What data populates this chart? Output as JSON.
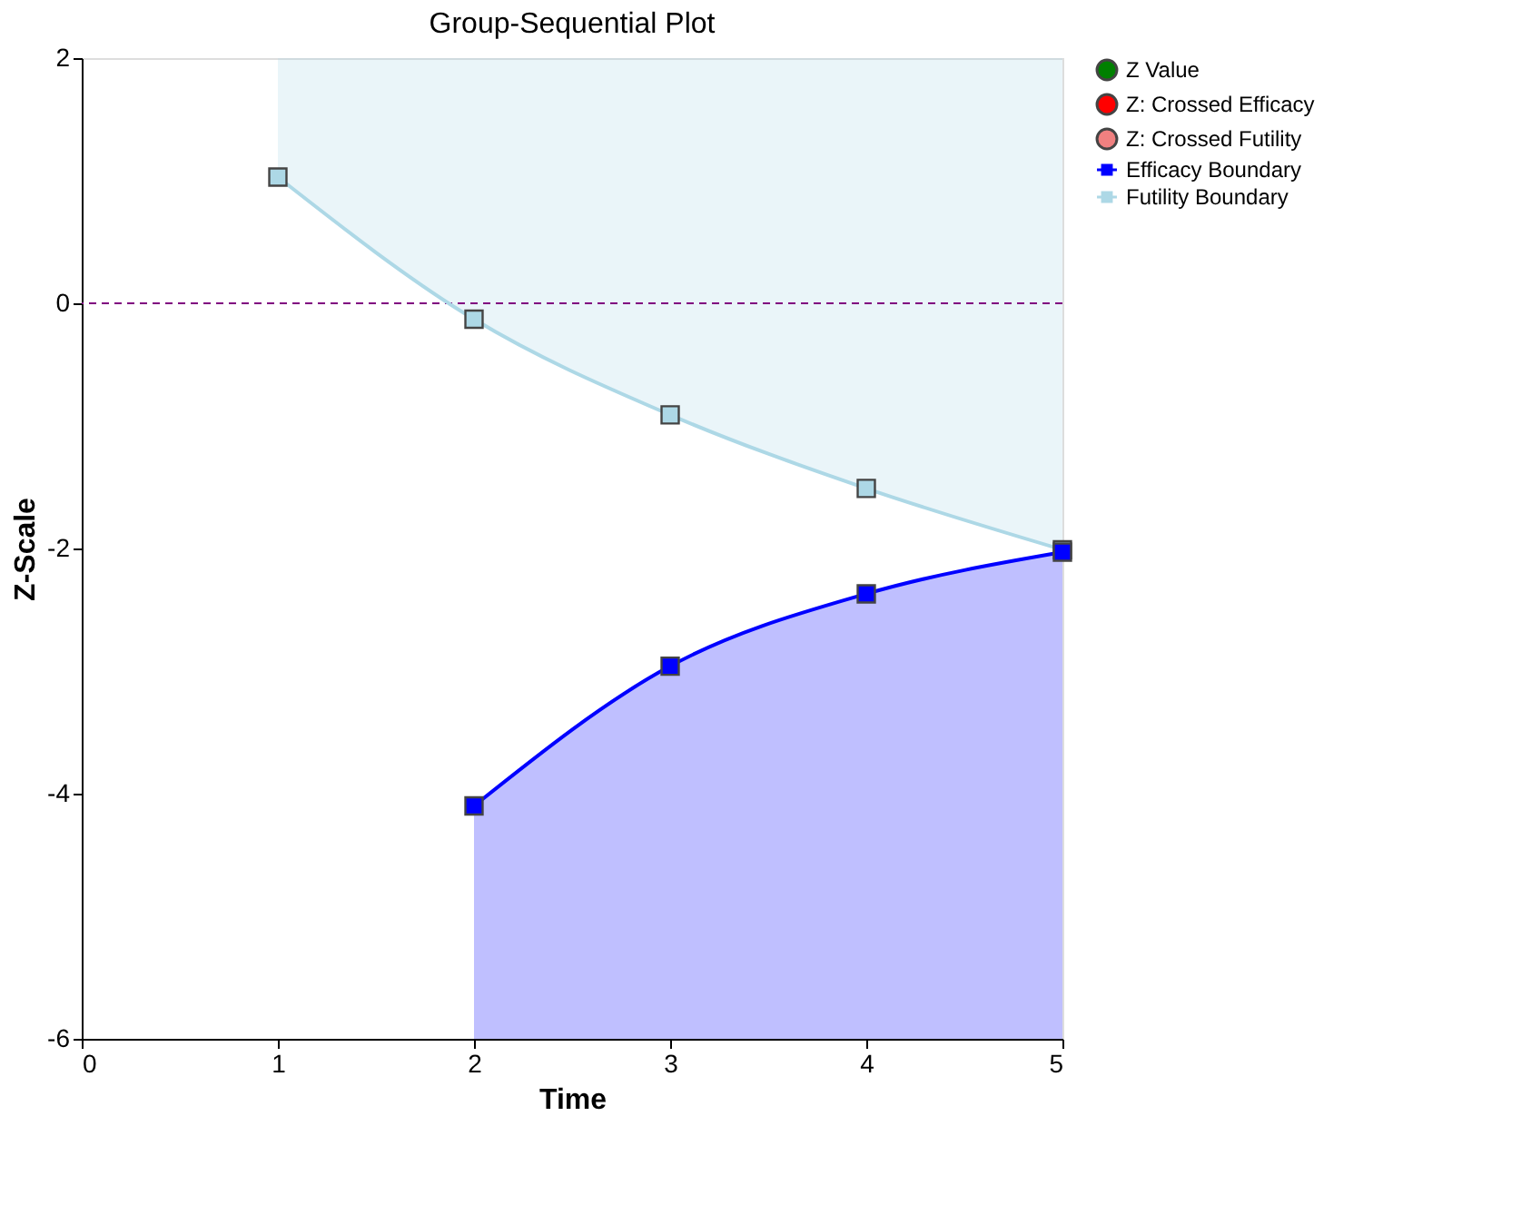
{
  "chart_data": {
    "type": "line",
    "title": "Group-Sequential Plot",
    "xlabel": "Time",
    "ylabel": "Z-Scale",
    "xlim": [
      0,
      5
    ],
    "xticks": [
      0,
      1,
      2,
      3,
      4,
      5
    ],
    "ylim": [
      -6,
      2
    ],
    "yticks": [
      -6,
      -4,
      -2,
      0,
      2
    ],
    "grid": false,
    "legend": "right",
    "series": [
      {
        "name": "Z Value",
        "type": "scatter",
        "marker": "circle",
        "color": "#008000"
      },
      {
        "name": "Z: Crossed Efficacy",
        "type": "scatter",
        "marker": "circle",
        "color": "#ff0000"
      },
      {
        "name": "Z: Crossed Futility",
        "type": "scatter",
        "marker": "circle",
        "color": "#f08080"
      },
      {
        "name": "Efficacy Boundary",
        "marker": "square",
        "line_style": "solid",
        "color": "#0000ff",
        "x": [
          2,
          3,
          4,
          5
        ],
        "values": [
          -4.1,
          -2.96,
          -2.37,
          -2.03
        ],
        "lower": [
          -6,
          -6,
          -6,
          -6
        ],
        "upper": [
          -4.1,
          -2.96,
          -2.37,
          -2.03
        ]
      },
      {
        "name": "Futility Boundary",
        "marker": "square",
        "line_style": "solid",
        "color": "#add8e6",
        "x": [
          1,
          2,
          3,
          4,
          5
        ],
        "values": [
          1.03,
          -0.13,
          -0.91,
          -1.51,
          -2.01
        ],
        "lower": [
          1.03,
          -0.13,
          -0.91,
          -1.51,
          -2.01
        ],
        "upper": [
          2,
          2,
          2,
          2,
          2
        ]
      }
    ],
    "ref_lines": [
      {
        "axis": "y",
        "value": 0,
        "color": "#800080",
        "line_style": "dashed"
      }
    ]
  }
}
